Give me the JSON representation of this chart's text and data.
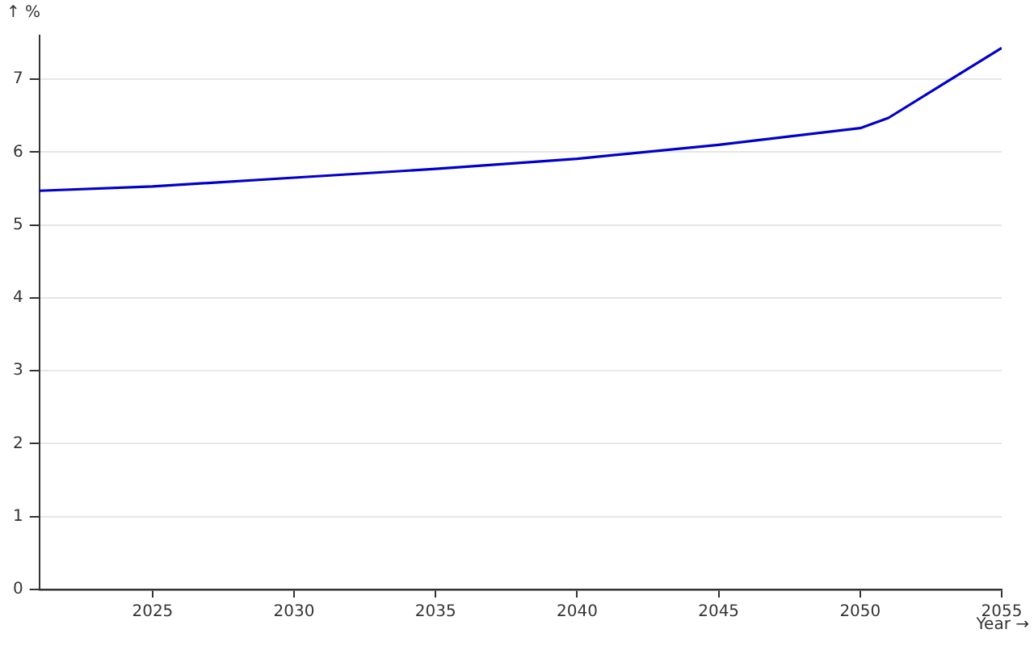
{
  "chart_data": {
    "type": "line",
    "xlabel": "Year →",
    "ylabel": "↑ %",
    "x": [
      2021,
      2025,
      2030,
      2035,
      2040,
      2045,
      2050,
      2051,
      2053,
      2055
    ],
    "series": [
      {
        "color": "#0000cc",
        "values": [
          5.47,
          5.53,
          5.65,
          5.77,
          5.91,
          6.1,
          6.33,
          6.47,
          6.95,
          7.43
        ]
      }
    ],
    "xlim": [
      2021,
      2055
    ],
    "xticks": [
      2025,
      2030,
      2035,
      2040,
      2045,
      2050,
      2055
    ],
    "ylim": [
      0,
      7.6
    ],
    "yticks": [
      0,
      1,
      2,
      3,
      4,
      5,
      6,
      7
    ],
    "grid": "y",
    "legend": false,
    "marker": "none",
    "line_style": "solid"
  }
}
